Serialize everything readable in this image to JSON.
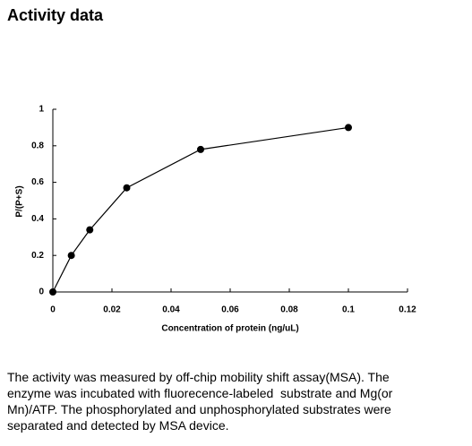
{
  "heading": "Activity data",
  "chart_data": {
    "type": "line",
    "x": [
      0,
      0.00625,
      0.0125,
      0.025,
      0.05,
      0.1
    ],
    "values": [
      0,
      0.2,
      0.34,
      0.57,
      0.78,
      0.9
    ],
    "color": "#000000",
    "xlabel": "Concentration of protein (ng/uL)",
    "ylabel": "P/(P+S)",
    "xlim": [
      0,
      0.12
    ],
    "xticks": [
      0,
      0.02,
      0.04,
      0.06,
      0.08,
      0.1,
      0.12
    ],
    "ylim": [
      0,
      1
    ],
    "yticks": [
      0,
      0.2,
      0.4,
      0.6,
      0.8,
      1
    ],
    "grid": false
  },
  "description": [
    "The activity was measured by off-chip mobility shift assay(MSA). The",
    "enzyme was incubated with fluorecence-labeled  substrate and Mg(or",
    "Mn)/ATP. The phosphorylated and unphosphorylated substrates were",
    "separated and detected by MSA device."
  ]
}
